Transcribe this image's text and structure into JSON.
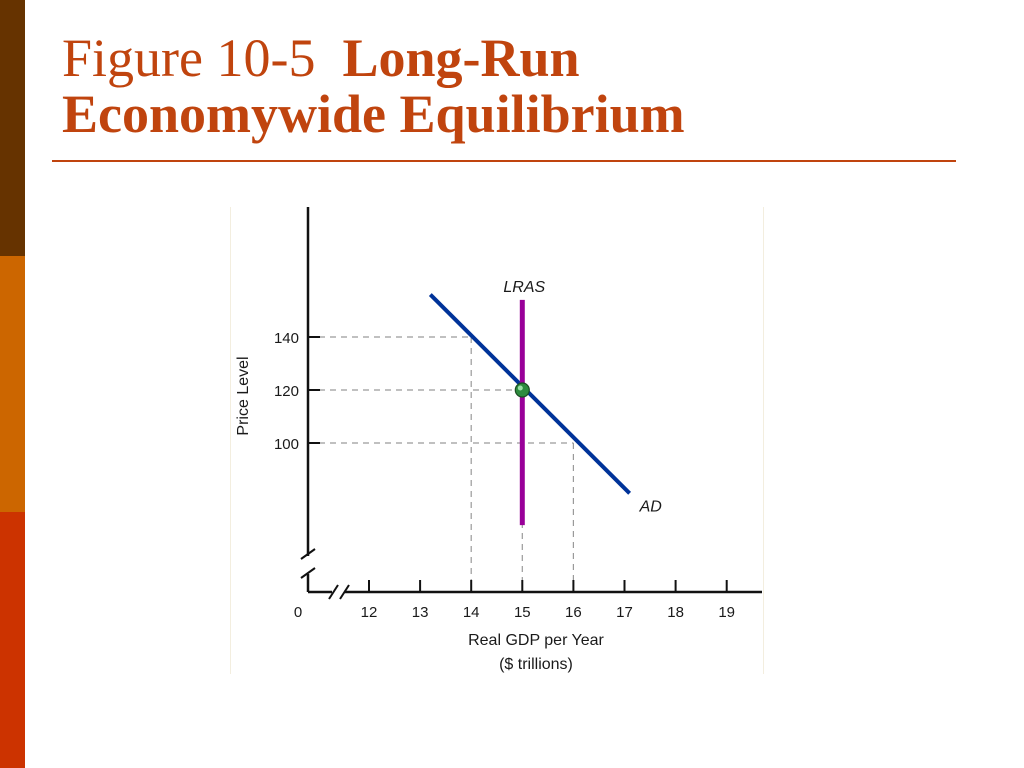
{
  "slide": {
    "title_figure": "Figure 10-5",
    "title_main_line1": "Long-Run",
    "title_main_line2": "Economywide Equilibrium",
    "colors": {
      "accent": "#c0440e",
      "side_bar": [
        "#663300",
        "#cc6600",
        "#cc3300"
      ]
    }
  },
  "chart_data": {
    "type": "line",
    "xlabel": "Real GDP per Year",
    "xlabel_sub": "($ trillions)",
    "ylabel": "Price Level",
    "x_origin_label": "0",
    "x_ticks": [
      12,
      13,
      14,
      15,
      16,
      17,
      18,
      19
    ],
    "y_ticks": [
      100,
      120,
      140
    ],
    "xlim": [
      11.5,
      19.7
    ],
    "ylim": [
      73,
      188
    ],
    "axis_breaks": true,
    "grid": false,
    "series": [
      {
        "name": "AD",
        "color": "#003399",
        "points": [
          [
            13.2,
            156
          ],
          [
            17.1,
            81
          ]
        ]
      },
      {
        "name": "LRAS",
        "color": "#990099",
        "points": [
          [
            15,
            154
          ],
          [
            15,
            69
          ]
        ]
      }
    ],
    "equilibrium": {
      "x": 15,
      "y": 120,
      "color": "#2e8b3e"
    },
    "reference_lines": [
      {
        "x": 14,
        "y": 140
      },
      {
        "x": 15,
        "y": 120
      },
      {
        "x": 16,
        "y": 100
      }
    ]
  }
}
